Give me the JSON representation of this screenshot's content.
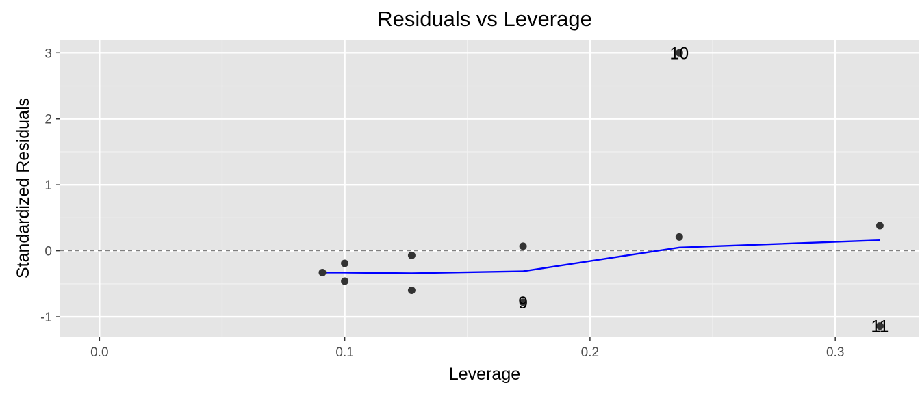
{
  "chart_data": {
    "type": "scatter",
    "title": "Residuals vs Leverage",
    "xlabel": "Leverage",
    "ylabel": "Standardized Residuals",
    "xlim": [
      -0.016,
      0.334
    ],
    "ylim": [
      -1.3,
      3.2
    ],
    "x_ticks": [
      0.0,
      0.1,
      0.2,
      0.3
    ],
    "x_tick_labels": [
      "0.0",
      "0.1",
      "0.2",
      "0.3"
    ],
    "y_ticks": [
      -1,
      0,
      1,
      2,
      3
    ],
    "y_tick_labels": [
      "-1",
      "0",
      "1",
      "2",
      "3"
    ],
    "grid": true,
    "background": "#e5e5e5",
    "reference_line": {
      "y": 0,
      "style": "dashed",
      "color": "#7f7f7f"
    },
    "points": [
      {
        "x": 0.0909,
        "y": -0.33
      },
      {
        "x": 0.1,
        "y": -0.19
      },
      {
        "x": 0.1,
        "y": -0.46
      },
      {
        "x": 0.1273,
        "y": -0.07
      },
      {
        "x": 0.1273,
        "y": -0.6
      },
      {
        "x": 0.1727,
        "y": 0.07
      },
      {
        "x": 0.1727,
        "y": -0.78
      },
      {
        "x": 0.2364,
        "y": 0.21
      },
      {
        "x": 0.2364,
        "y": 3.0
      },
      {
        "x": 0.3182,
        "y": 0.38
      },
      {
        "x": 0.3182,
        "y": -1.14
      }
    ],
    "point_color": "#333333",
    "labels": [
      {
        "text": "9",
        "x": 0.1727,
        "y": -0.78
      },
      {
        "text": "10",
        "x": 0.2364,
        "y": 3.0
      },
      {
        "text": "11",
        "x": 0.3182,
        "y": -1.14
      }
    ],
    "smooth_line": {
      "color": "#0000ff",
      "x": [
        0.0909,
        0.1,
        0.1273,
        0.1727,
        0.2364,
        0.3182
      ],
      "y": [
        -0.33,
        -0.33,
        -0.34,
        -0.31,
        0.05,
        0.16
      ]
    }
  }
}
